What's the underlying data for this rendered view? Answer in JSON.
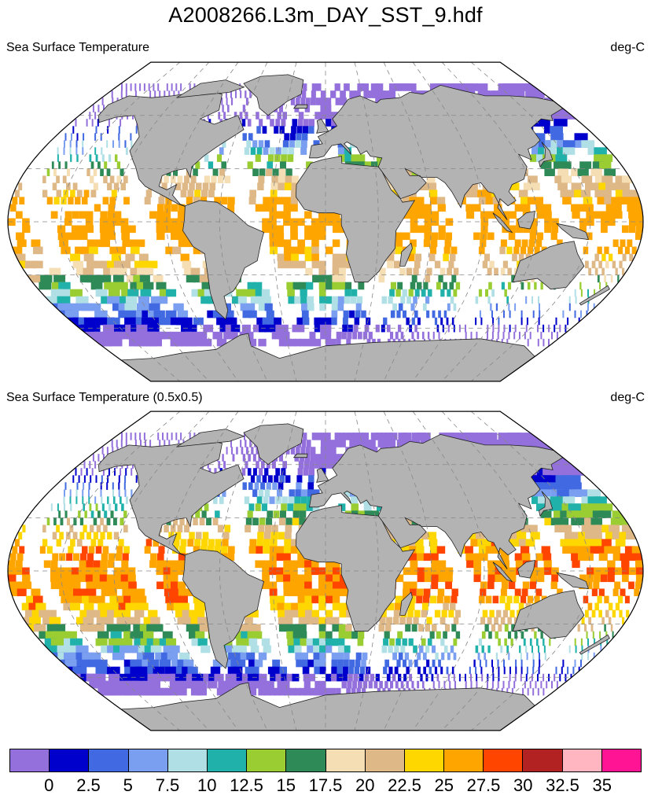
{
  "title": "A2008266.L3m_DAY_SST_9.hdf",
  "panels": [
    {
      "label": "Sea Surface Temperature",
      "units": "deg-C"
    },
    {
      "label": "Sea Surface Temperature (0.5x0.5)",
      "units": "deg-C"
    }
  ],
  "colorbar": {
    "colors": [
      "#9370db",
      "#0000cd",
      "#4169e1",
      "#7b9ff0",
      "#b0e0e6",
      "#20b2aa",
      "#9acd32",
      "#2e8b57",
      "#f5deb3",
      "#deb887",
      "#ffd700",
      "#ffa500",
      "#ff4500",
      "#b22222",
      "#ffb6c1",
      "#ff1493"
    ],
    "tick_labels": [
      "0",
      "2.5",
      "5",
      "7.5",
      "10",
      "12.5",
      "15",
      "17.5",
      "20",
      "22.5",
      "25",
      "27.5",
      "30",
      "32.5",
      "35"
    ]
  },
  "map_style": {
    "land_color": "#b3b3b3",
    "ocean_missing_color": "#ffffff",
    "grid_color": "#888888",
    "projection": "Robinson"
  }
}
